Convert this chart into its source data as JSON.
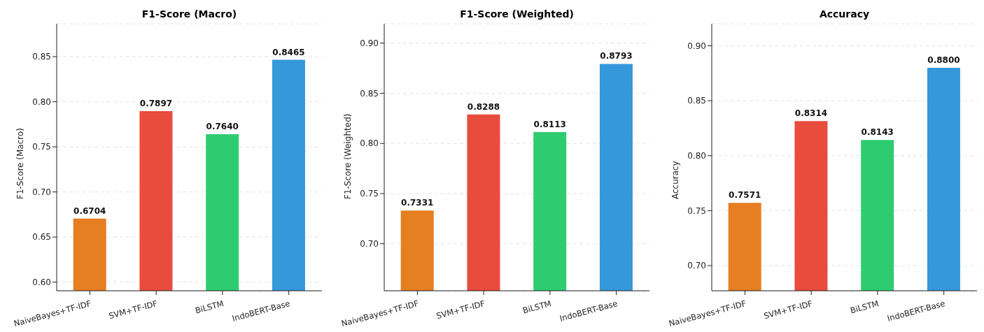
{
  "chart_data": [
    {
      "type": "bar",
      "title": "F1-Score (Macro)",
      "ylabel": "F1-Score (Macro)",
      "categories": [
        "NaiveBayes+TF-IDF",
        "SVM+TF-IDF",
        "BiLSTM",
        "IndoBERT-Base"
      ],
      "values": [
        0.6704,
        0.7897,
        0.764,
        0.8465
      ],
      "value_labels": [
        "0.6704",
        "0.7897",
        "0.7640",
        "0.8465"
      ],
      "colors": [
        "#e67e22",
        "#e74c3c",
        "#2ecc71",
        "#3498db"
      ],
      "ylim": [
        0.5904,
        0.8865
      ],
      "yticks": [
        {
          "value": 0.6,
          "label": "0.60"
        },
        {
          "value": 0.65,
          "label": "0.65"
        },
        {
          "value": 0.7,
          "label": "0.70"
        },
        {
          "value": 0.75,
          "label": "0.75"
        },
        {
          "value": 0.8,
          "label": "0.80"
        },
        {
          "value": 0.85,
          "label": "0.85"
        }
      ],
      "grid": "y"
    },
    {
      "type": "bar",
      "title": "F1-Score (Weighted)",
      "ylabel": "F1-Score (Weighted)",
      "categories": [
        "NaiveBayes+TF-IDF",
        "SVM+TF-IDF",
        "BiLSTM",
        "IndoBERT-Base"
      ],
      "values": [
        0.7331,
        0.8288,
        0.8113,
        0.8793
      ],
      "value_labels": [
        "0.7331",
        "0.8288",
        "0.8113",
        "0.8793"
      ],
      "colors": [
        "#e67e22",
        "#e74c3c",
        "#2ecc71",
        "#3498db"
      ],
      "ylim": [
        0.6531,
        0.9193
      ],
      "yticks": [
        {
          "value": 0.7,
          "label": "0.70"
        },
        {
          "value": 0.75,
          "label": "0.75"
        },
        {
          "value": 0.8,
          "label": "0.80"
        },
        {
          "value": 0.85,
          "label": "0.85"
        },
        {
          "value": 0.9,
          "label": "0.90"
        }
      ],
      "grid": "y"
    },
    {
      "type": "bar",
      "title": "Accuracy",
      "ylabel": "Accuracy",
      "categories": [
        "NaiveBayes+TF-IDF",
        "SVM+TF-IDF",
        "BiLSTM",
        "IndoBERT-Base"
      ],
      "values": [
        0.7571,
        0.8314,
        0.8143,
        0.88
      ],
      "value_labels": [
        "0.7571",
        "0.8314",
        "0.8143",
        "0.8800"
      ],
      "colors": [
        "#e67e22",
        "#e74c3c",
        "#2ecc71",
        "#3498db"
      ],
      "ylim": [
        0.6771,
        0.92
      ],
      "yticks": [
        {
          "value": 0.7,
          "label": "0.70"
        },
        {
          "value": 0.75,
          "label": "0.75"
        },
        {
          "value": 0.8,
          "label": "0.80"
        },
        {
          "value": 0.85,
          "label": "0.85"
        },
        {
          "value": 0.9,
          "label": "0.90"
        }
      ],
      "grid": "y"
    }
  ]
}
